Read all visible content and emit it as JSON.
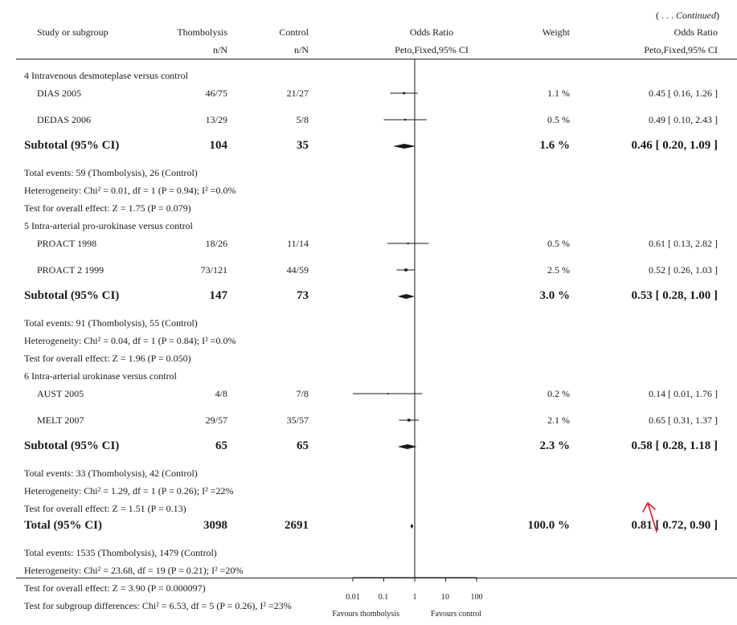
{
  "continued": "( . . . Continued)",
  "continued_prefix": "( . . . ",
  "continued_word": "Continued",
  "continued_suffix": ")",
  "headers": {
    "study": "Study or subgroup",
    "treat": "Thombolysis",
    "treat_sub": "n/N",
    "control": "Control",
    "control_sub": "n/N",
    "or": "Odds Ratio",
    "or_sub": "Peto,Fixed,95% CI",
    "weight": "Weight",
    "or2": "Odds Ratio",
    "or2_sub": "Peto,Fixed,95% CI"
  },
  "rows": [
    {
      "kind": "group",
      "text": "4 Intravenous desmoteplase versus control"
    },
    {
      "kind": "study",
      "name": "DIAS 2005",
      "t": "46/75",
      "c": "21/27",
      "w": "1.1 %",
      "ci": "0.45 [ 0.16, 1.26 ]"
    },
    {
      "kind": "study",
      "name": "DEDAS 2006",
      "t": "13/29",
      "c": "5/8",
      "w": "0.5 %",
      "ci": "0.49 [ 0.10, 2.43 ]"
    },
    {
      "kind": "subtotal",
      "name": "Subtotal (95% CI)",
      "t": "104",
      "c": "35",
      "w": "1.6 %",
      "ci": "0.46 [ 0.20, 1.09 ]"
    },
    {
      "kind": "note",
      "text": "Total events: 59 (Thombolysis), 26 (Control)"
    },
    {
      "kind": "note",
      "text": "Heterogeneity: Chi² = 0.01, df = 1 (P = 0.94); I² =0.0%"
    },
    {
      "kind": "note",
      "text": "Test for overall effect: Z = 1.75 (P = 0.079)"
    },
    {
      "kind": "group",
      "text": "5 Intra-arterial pro-urokinase versus control"
    },
    {
      "kind": "study",
      "name": "PROACT 1998",
      "t": "18/26",
      "c": "11/14",
      "w": "0.5 %",
      "ci": "0.61 [ 0.13, 2.82 ]"
    },
    {
      "kind": "study",
      "name": "PROACT 2 1999",
      "t": "73/121",
      "c": "44/59",
      "w": "2.5 %",
      "ci": "0.52 [ 0.26, 1.03 ]"
    },
    {
      "kind": "subtotal",
      "name": "Subtotal (95% CI)",
      "t": "147",
      "c": "73",
      "w": "3.0 %",
      "ci": "0.53 [ 0.28, 1.00 ]"
    },
    {
      "kind": "note",
      "text": "Total events: 91 (Thombolysis), 55 (Control)"
    },
    {
      "kind": "note",
      "text": "Heterogeneity: Chi² = 0.04, df = 1 (P = 0.84); I² =0.0%"
    },
    {
      "kind": "note",
      "text": "Test for overall effect: Z = 1.96 (P = 0.050)"
    },
    {
      "kind": "group",
      "text": "6 Intra-arterial urokinase versus control"
    },
    {
      "kind": "study",
      "name": "AUST 2005",
      "t": "4/8",
      "c": "7/8",
      "w": "0.2 %",
      "ci": "0.14 [ 0.01, 1.76 ]"
    },
    {
      "kind": "study",
      "name": "MELT 2007",
      "t": "29/57",
      "c": "35/57",
      "w": "2.1 %",
      "ci": "0.65 [ 0.31, 1.37 ]"
    },
    {
      "kind": "subtotal",
      "name": "Subtotal (95% CI)",
      "t": "65",
      "c": "65",
      "w": "2.3 %",
      "ci": "0.58 [ 0.28, 1.18 ]"
    },
    {
      "kind": "note",
      "text": "Total events: 33 (Thombolysis), 42 (Control)"
    },
    {
      "kind": "note",
      "text": "Heterogeneity: Chi² = 1.29, df = 1 (P = 0.26); I² =22%"
    },
    {
      "kind": "note",
      "text": "Test for overall effect: Z = 1.51 (P = 0.13)"
    },
    {
      "kind": "subtotal",
      "name": "Total (95% CI)",
      "t": "3098",
      "c": "2691",
      "w": "100.0 %",
      "ci": "0.81 [ 0.72, 0.90 ]"
    },
    {
      "kind": "note",
      "text": "Total events: 1535 (Thombolysis), 1479 (Control)"
    },
    {
      "kind": "note",
      "text": "Heterogeneity: Chi² = 23.68, df = 19 (P = 0.21); I² =20%"
    },
    {
      "kind": "note",
      "text": "Test for overall effect: Z = 3.90 (P = 0.000097)"
    },
    {
      "kind": "note",
      "text": "Test for subgroup differences: Chi² = 6.53, df = 5 (P = 0.26), I² =23%"
    }
  ],
  "axis": {
    "ticks": [
      "0.01",
      "0.1",
      "1",
      "10",
      "100"
    ],
    "favours_left": "Favours thombolysis",
    "favours_right": "Favours control"
  },
  "colors": {
    "annotation_arrow": "#e0191e",
    "ink": "#1a1a1a"
  },
  "chart_data": {
    "type": "forest",
    "scale": "log",
    "xlim": [
      0.01,
      100
    ],
    "reference_line": 1,
    "x_ticks": [
      0.01,
      0.1,
      1,
      10,
      100
    ],
    "studies": [
      {
        "name": "DIAS 2005",
        "or": 0.45,
        "lo": 0.16,
        "hi": 1.26,
        "weight": 1.1
      },
      {
        "name": "DEDAS 2006",
        "or": 0.49,
        "lo": 0.1,
        "hi": 2.43,
        "weight": 0.5
      },
      {
        "name": "PROACT 1998",
        "or": 0.61,
        "lo": 0.13,
        "hi": 2.82,
        "weight": 0.5
      },
      {
        "name": "PROACT 2 1999",
        "or": 0.52,
        "lo": 0.26,
        "hi": 1.03,
        "weight": 2.5
      },
      {
        "name": "AUST 2005",
        "or": 0.14,
        "lo": 0.01,
        "hi": 1.76,
        "weight": 0.2
      },
      {
        "name": "MELT 2007",
        "or": 0.65,
        "lo": 0.31,
        "hi": 1.37,
        "weight": 2.1
      }
    ],
    "summaries": [
      {
        "name": "Subtotal (95% CI)",
        "or": 0.46,
        "lo": 0.2,
        "hi": 1.09,
        "weight": 1.6
      },
      {
        "name": "Subtotal (95% CI)",
        "or": 0.53,
        "lo": 0.28,
        "hi": 1.0,
        "weight": 3.0
      },
      {
        "name": "Subtotal (95% CI)",
        "or": 0.58,
        "lo": 0.28,
        "hi": 1.18,
        "weight": 2.3
      },
      {
        "name": "Total (95% CI)",
        "or": 0.81,
        "lo": 0.72,
        "hi": 0.9,
        "weight": 100.0
      }
    ]
  }
}
